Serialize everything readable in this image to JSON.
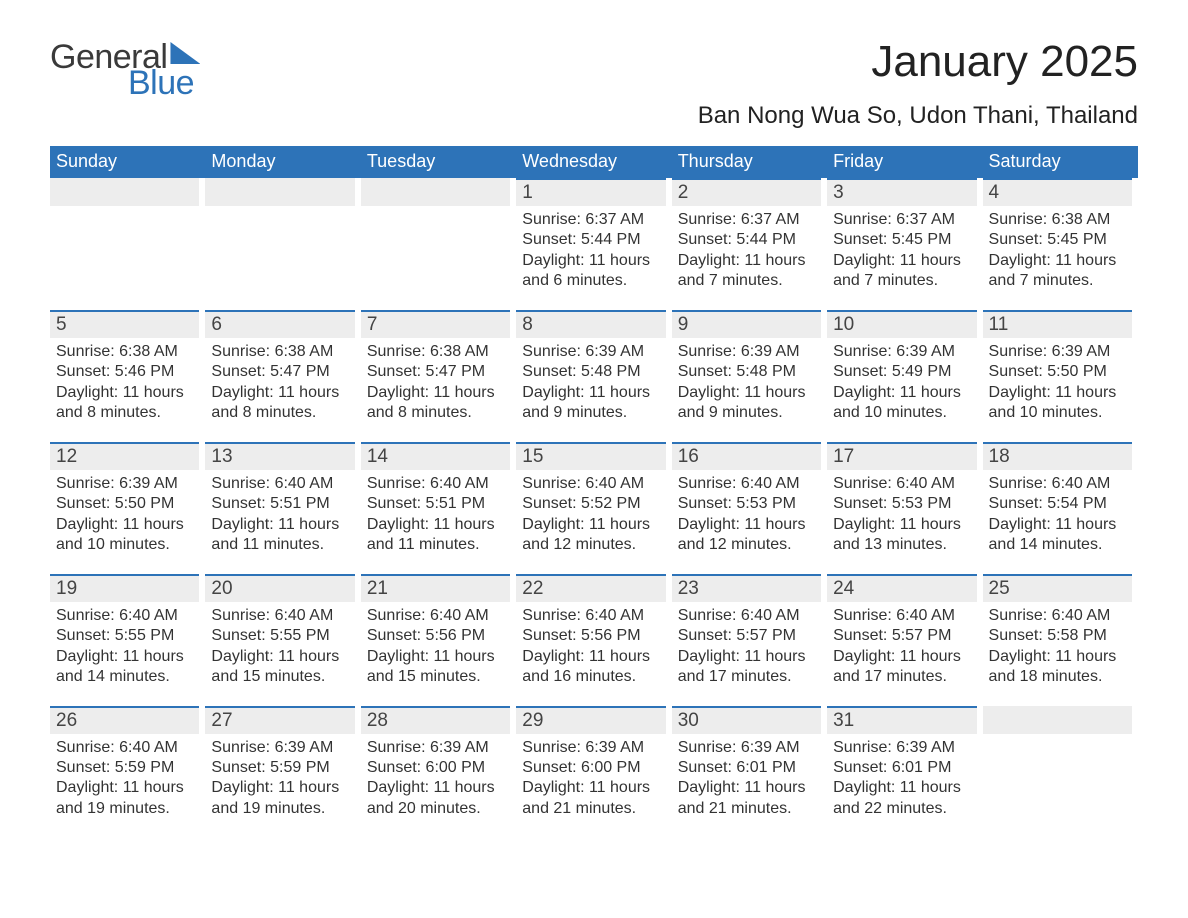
{
  "brand": {
    "word1": "General",
    "word2": "Blue"
  },
  "title": "January 2025",
  "location": "Ban Nong Wua So, Udon Thani, Thailand",
  "colors": {
    "accent": "#2d73b8",
    "row_bg": "#ededed",
    "background": "#ffffff",
    "text": "#333333"
  },
  "typography": {
    "title_fontsize": 44,
    "location_fontsize": 24,
    "dow_fontsize": 18,
    "daynum_fontsize": 19,
    "body_fontsize": 16,
    "font_family": "Arial"
  },
  "days_of_week": [
    "Sunday",
    "Monday",
    "Tuesday",
    "Wednesday",
    "Thursday",
    "Friday",
    "Saturday"
  ],
  "weeks": [
    [
      {
        "empty": true
      },
      {
        "empty": true
      },
      {
        "empty": true
      },
      {
        "day": "1",
        "sunrise": "Sunrise: 6:37 AM",
        "sunset": "Sunset: 5:44 PM",
        "daylight1": "Daylight: 11 hours",
        "daylight2": "and 6 minutes."
      },
      {
        "day": "2",
        "sunrise": "Sunrise: 6:37 AM",
        "sunset": "Sunset: 5:44 PM",
        "daylight1": "Daylight: 11 hours",
        "daylight2": "and 7 minutes."
      },
      {
        "day": "3",
        "sunrise": "Sunrise: 6:37 AM",
        "sunset": "Sunset: 5:45 PM",
        "daylight1": "Daylight: 11 hours",
        "daylight2": "and 7 minutes."
      },
      {
        "day": "4",
        "sunrise": "Sunrise: 6:38 AM",
        "sunset": "Sunset: 5:45 PM",
        "daylight1": "Daylight: 11 hours",
        "daylight2": "and 7 minutes."
      }
    ],
    [
      {
        "day": "5",
        "sunrise": "Sunrise: 6:38 AM",
        "sunset": "Sunset: 5:46 PM",
        "daylight1": "Daylight: 11 hours",
        "daylight2": "and 8 minutes."
      },
      {
        "day": "6",
        "sunrise": "Sunrise: 6:38 AM",
        "sunset": "Sunset: 5:47 PM",
        "daylight1": "Daylight: 11 hours",
        "daylight2": "and 8 minutes."
      },
      {
        "day": "7",
        "sunrise": "Sunrise: 6:38 AM",
        "sunset": "Sunset: 5:47 PM",
        "daylight1": "Daylight: 11 hours",
        "daylight2": "and 8 minutes."
      },
      {
        "day": "8",
        "sunrise": "Sunrise: 6:39 AM",
        "sunset": "Sunset: 5:48 PM",
        "daylight1": "Daylight: 11 hours",
        "daylight2": "and 9 minutes."
      },
      {
        "day": "9",
        "sunrise": "Sunrise: 6:39 AM",
        "sunset": "Sunset: 5:48 PM",
        "daylight1": "Daylight: 11 hours",
        "daylight2": "and 9 minutes."
      },
      {
        "day": "10",
        "sunrise": "Sunrise: 6:39 AM",
        "sunset": "Sunset: 5:49 PM",
        "daylight1": "Daylight: 11 hours",
        "daylight2": "and 10 minutes."
      },
      {
        "day": "11",
        "sunrise": "Sunrise: 6:39 AM",
        "sunset": "Sunset: 5:50 PM",
        "daylight1": "Daylight: 11 hours",
        "daylight2": "and 10 minutes."
      }
    ],
    [
      {
        "day": "12",
        "sunrise": "Sunrise: 6:39 AM",
        "sunset": "Sunset: 5:50 PM",
        "daylight1": "Daylight: 11 hours",
        "daylight2": "and 10 minutes."
      },
      {
        "day": "13",
        "sunrise": "Sunrise: 6:40 AM",
        "sunset": "Sunset: 5:51 PM",
        "daylight1": "Daylight: 11 hours",
        "daylight2": "and 11 minutes."
      },
      {
        "day": "14",
        "sunrise": "Sunrise: 6:40 AM",
        "sunset": "Sunset: 5:51 PM",
        "daylight1": "Daylight: 11 hours",
        "daylight2": "and 11 minutes."
      },
      {
        "day": "15",
        "sunrise": "Sunrise: 6:40 AM",
        "sunset": "Sunset: 5:52 PM",
        "daylight1": "Daylight: 11 hours",
        "daylight2": "and 12 minutes."
      },
      {
        "day": "16",
        "sunrise": "Sunrise: 6:40 AM",
        "sunset": "Sunset: 5:53 PM",
        "daylight1": "Daylight: 11 hours",
        "daylight2": "and 12 minutes."
      },
      {
        "day": "17",
        "sunrise": "Sunrise: 6:40 AM",
        "sunset": "Sunset: 5:53 PM",
        "daylight1": "Daylight: 11 hours",
        "daylight2": "and 13 minutes."
      },
      {
        "day": "18",
        "sunrise": "Sunrise: 6:40 AM",
        "sunset": "Sunset: 5:54 PM",
        "daylight1": "Daylight: 11 hours",
        "daylight2": "and 14 minutes."
      }
    ],
    [
      {
        "day": "19",
        "sunrise": "Sunrise: 6:40 AM",
        "sunset": "Sunset: 5:55 PM",
        "daylight1": "Daylight: 11 hours",
        "daylight2": "and 14 minutes."
      },
      {
        "day": "20",
        "sunrise": "Sunrise: 6:40 AM",
        "sunset": "Sunset: 5:55 PM",
        "daylight1": "Daylight: 11 hours",
        "daylight2": "and 15 minutes."
      },
      {
        "day": "21",
        "sunrise": "Sunrise: 6:40 AM",
        "sunset": "Sunset: 5:56 PM",
        "daylight1": "Daylight: 11 hours",
        "daylight2": "and 15 minutes."
      },
      {
        "day": "22",
        "sunrise": "Sunrise: 6:40 AM",
        "sunset": "Sunset: 5:56 PM",
        "daylight1": "Daylight: 11 hours",
        "daylight2": "and 16 minutes."
      },
      {
        "day": "23",
        "sunrise": "Sunrise: 6:40 AM",
        "sunset": "Sunset: 5:57 PM",
        "daylight1": "Daylight: 11 hours",
        "daylight2": "and 17 minutes."
      },
      {
        "day": "24",
        "sunrise": "Sunrise: 6:40 AM",
        "sunset": "Sunset: 5:57 PM",
        "daylight1": "Daylight: 11 hours",
        "daylight2": "and 17 minutes."
      },
      {
        "day": "25",
        "sunrise": "Sunrise: 6:40 AM",
        "sunset": "Sunset: 5:58 PM",
        "daylight1": "Daylight: 11 hours",
        "daylight2": "and 18 minutes."
      }
    ],
    [
      {
        "day": "26",
        "sunrise": "Sunrise: 6:40 AM",
        "sunset": "Sunset: 5:59 PM",
        "daylight1": "Daylight: 11 hours",
        "daylight2": "and 19 minutes."
      },
      {
        "day": "27",
        "sunrise": "Sunrise: 6:39 AM",
        "sunset": "Sunset: 5:59 PM",
        "daylight1": "Daylight: 11 hours",
        "daylight2": "and 19 minutes."
      },
      {
        "day": "28",
        "sunrise": "Sunrise: 6:39 AM",
        "sunset": "Sunset: 6:00 PM",
        "daylight1": "Daylight: 11 hours",
        "daylight2": "and 20 minutes."
      },
      {
        "day": "29",
        "sunrise": "Sunrise: 6:39 AM",
        "sunset": "Sunset: 6:00 PM",
        "daylight1": "Daylight: 11 hours",
        "daylight2": "and 21 minutes."
      },
      {
        "day": "30",
        "sunrise": "Sunrise: 6:39 AM",
        "sunset": "Sunset: 6:01 PM",
        "daylight1": "Daylight: 11 hours",
        "daylight2": "and 21 minutes."
      },
      {
        "day": "31",
        "sunrise": "Sunrise: 6:39 AM",
        "sunset": "Sunset: 6:01 PM",
        "daylight1": "Daylight: 11 hours",
        "daylight2": "and 22 minutes."
      },
      {
        "empty": true
      }
    ]
  ]
}
